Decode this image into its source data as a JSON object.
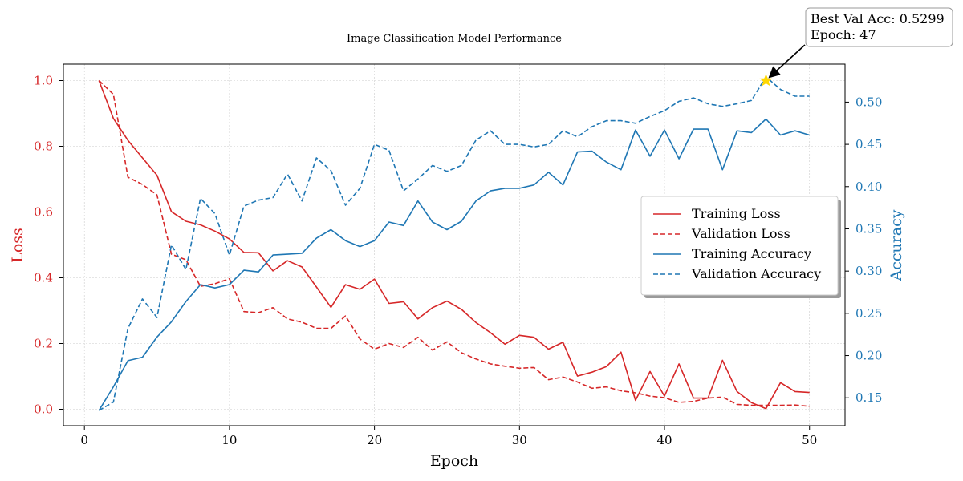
{
  "chart_data": {
    "type": "line",
    "title": "Image Classification Model Performance",
    "xlabel": "Epoch",
    "ylabel_left": "Loss",
    "ylabel_right": "Accuracy",
    "xlim": [
      -1.45,
      52.45
    ],
    "ylim_left": [
      -0.05,
      1.05
    ],
    "ylim_right": [
      0.117,
      0.545
    ],
    "x_ticks": [
      0,
      10,
      20,
      30,
      40,
      50
    ],
    "y_left_ticks": [
      0.0,
      0.2,
      0.4,
      0.6,
      0.8,
      1.0
    ],
    "y_right_ticks": [
      0.15,
      0.2,
      0.25,
      0.3,
      0.35,
      0.4,
      0.45,
      0.5
    ],
    "grid": true,
    "legend_placement": "center-right",
    "colors": {
      "loss": "#d62728",
      "accuracy": "#1f77b4",
      "highlight": "#ffd700"
    },
    "x": [
      1,
      2,
      3,
      4,
      5,
      6,
      7,
      8,
      9,
      10,
      11,
      12,
      13,
      14,
      15,
      16,
      17,
      18,
      19,
      20,
      21,
      22,
      23,
      24,
      25,
      26,
      27,
      28,
      29,
      30,
      31,
      32,
      33,
      34,
      35,
      36,
      37,
      38,
      39,
      40,
      41,
      42,
      43,
      44,
      45,
      46,
      47,
      48,
      49,
      50
    ],
    "series": [
      {
        "name": "Training Loss",
        "axis": "left",
        "style": "solid",
        "color": "#d62728",
        "values": [
          1.0,
          0.885,
          0.818,
          0.765,
          0.712,
          0.601,
          0.572,
          0.561,
          0.542,
          0.518,
          0.477,
          0.476,
          0.421,
          0.452,
          0.433,
          0.372,
          0.31,
          0.379,
          0.365,
          0.396,
          0.322,
          0.327,
          0.275,
          0.309,
          0.329,
          0.304,
          0.264,
          0.233,
          0.198,
          0.225,
          0.219,
          0.183,
          0.204,
          0.101,
          0.113,
          0.13,
          0.174,
          0.027,
          0.115,
          0.04,
          0.138,
          0.034,
          0.034,
          0.149,
          0.054,
          0.02,
          0.002,
          0.081,
          0.054,
          0.051
        ]
      },
      {
        "name": "Validation Loss",
        "axis": "left",
        "style": "dashed",
        "color": "#d62728",
        "values": [
          1.0,
          0.958,
          0.706,
          0.684,
          0.652,
          0.472,
          0.455,
          0.374,
          0.382,
          0.397,
          0.297,
          0.294,
          0.309,
          0.275,
          0.265,
          0.246,
          0.246,
          0.284,
          0.214,
          0.183,
          0.2,
          0.188,
          0.219,
          0.18,
          0.205,
          0.172,
          0.153,
          0.138,
          0.131,
          0.125,
          0.127,
          0.09,
          0.098,
          0.083,
          0.064,
          0.068,
          0.056,
          0.05,
          0.04,
          0.035,
          0.021,
          0.024,
          0.034,
          0.037,
          0.015,
          0.012,
          0.012,
          0.012,
          0.013,
          0.009
        ]
      },
      {
        "name": "Training Accuracy",
        "axis": "right",
        "style": "solid",
        "color": "#1f77b4",
        "values": [
          0.135,
          0.163,
          0.194,
          0.198,
          0.222,
          0.24,
          0.264,
          0.284,
          0.28,
          0.284,
          0.301,
          0.299,
          0.319,
          0.32,
          0.321,
          0.339,
          0.349,
          0.336,
          0.329,
          0.336,
          0.358,
          0.354,
          0.383,
          0.358,
          0.349,
          0.359,
          0.383,
          0.395,
          0.398,
          0.398,
          0.402,
          0.417,
          0.402,
          0.441,
          0.442,
          0.429,
          0.42,
          0.467,
          0.436,
          0.467,
          0.433,
          0.468,
          0.468,
          0.42,
          0.466,
          0.464,
          0.48,
          0.461,
          0.466,
          0.461
        ]
      },
      {
        "name": "Validation Accuracy",
        "axis": "right",
        "style": "dashed",
        "color": "#1f77b4",
        "values": [
          0.135,
          0.145,
          0.232,
          0.267,
          0.245,
          0.331,
          0.302,
          0.386,
          0.368,
          0.319,
          0.377,
          0.384,
          0.387,
          0.415,
          0.383,
          0.434,
          0.419,
          0.378,
          0.398,
          0.45,
          0.443,
          0.395,
          0.409,
          0.425,
          0.418,
          0.425,
          0.455,
          0.466,
          0.45,
          0.45,
          0.447,
          0.45,
          0.466,
          0.459,
          0.471,
          0.478,
          0.478,
          0.475,
          0.483,
          0.49,
          0.501,
          0.505,
          0.498,
          0.495,
          0.498,
          0.502,
          0.53,
          0.515,
          0.507,
          0.507
        ]
      }
    ],
    "highlight_point": {
      "x": 47,
      "y": 1.0,
      "axis": "left"
    },
    "annotation": {
      "line1": "Best Val Acc: 0.5299",
      "line2": "Epoch: 47"
    }
  }
}
